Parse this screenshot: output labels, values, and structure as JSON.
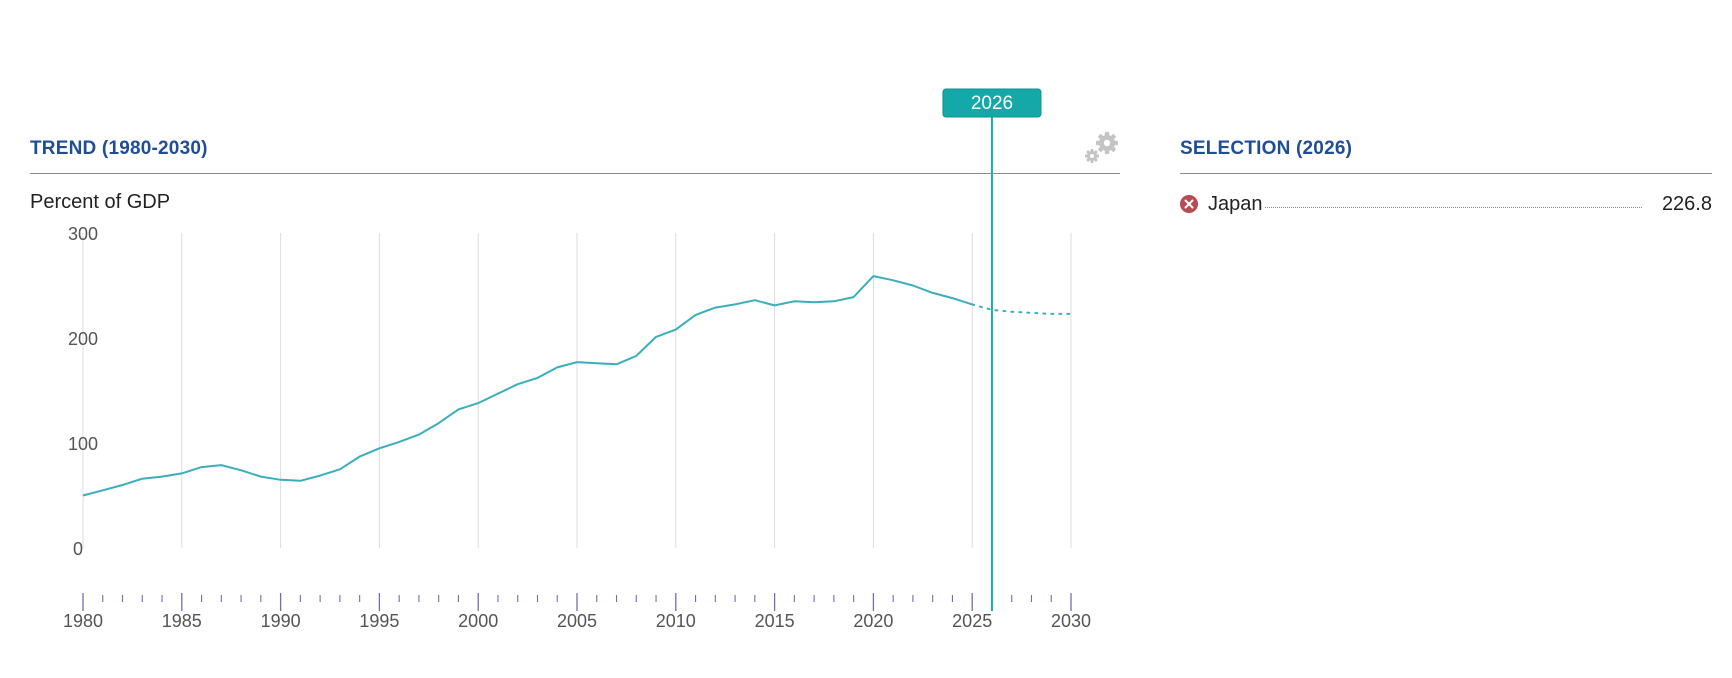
{
  "trend_panel": {
    "title": "TREND (1980-2030)",
    "unit_label": "Percent of GDP"
  },
  "selection_panel": {
    "title": "SELECTION (2026)",
    "items": [
      {
        "country": "Japan",
        "value": "226.8",
        "remove_icon": "close-circle-icon"
      }
    ]
  },
  "settings_icon": "gears-icon",
  "colors": {
    "line": "#3aaebd",
    "marker": "#1aaeb0",
    "title": "#1f4e96",
    "remove": "#b94a55"
  },
  "chart_data": {
    "type": "line",
    "title": "TREND (1980-2030)",
    "ylabel": "Percent of GDP",
    "xlabel": "",
    "xlim": [
      1980,
      2030
    ],
    "ylim": [
      0,
      300
    ],
    "y_ticks": [
      0,
      100,
      200,
      300
    ],
    "x_ticks": [
      1980,
      1985,
      1990,
      1995,
      2000,
      2005,
      2010,
      2015,
      2020,
      2025,
      2030
    ],
    "grid": true,
    "selected_year": 2026,
    "selected_label": "2026",
    "series": [
      {
        "name": "Japan",
        "actual_through": 2025,
        "points": [
          [
            1980,
            50
          ],
          [
            1981,
            55
          ],
          [
            1982,
            60
          ],
          [
            1983,
            66
          ],
          [
            1984,
            68
          ],
          [
            1985,
            71
          ],
          [
            1986,
            77
          ],
          [
            1987,
            79
          ],
          [
            1988,
            74
          ],
          [
            1989,
            68
          ],
          [
            1990,
            65
          ],
          [
            1991,
            64
          ],
          [
            1992,
            69
          ],
          [
            1993,
            75
          ],
          [
            1994,
            87
          ],
          [
            1995,
            95
          ],
          [
            1996,
            101
          ],
          [
            1997,
            108
          ],
          [
            1998,
            119
          ],
          [
            1999,
            132
          ],
          [
            2000,
            138
          ],
          [
            2001,
            147
          ],
          [
            2002,
            156
          ],
          [
            2003,
            162
          ],
          [
            2004,
            172
          ],
          [
            2005,
            177
          ],
          [
            2006,
            176
          ],
          [
            2007,
            175
          ],
          [
            2008,
            183
          ],
          [
            2009,
            201
          ],
          [
            2010,
            208
          ],
          [
            2011,
            222
          ],
          [
            2012,
            229
          ],
          [
            2013,
            232
          ],
          [
            2014,
            236
          ],
          [
            2015,
            231
          ],
          [
            2016,
            235
          ],
          [
            2017,
            234
          ],
          [
            2018,
            235
          ],
          [
            2019,
            239
          ],
          [
            2020,
            259
          ],
          [
            2021,
            255
          ],
          [
            2022,
            250
          ],
          [
            2023,
            243
          ],
          [
            2024,
            238
          ],
          [
            2025,
            232
          ],
          [
            2026,
            226.8
          ],
          [
            2027,
            225
          ],
          [
            2028,
            224
          ],
          [
            2029,
            223
          ],
          [
            2030,
            223
          ]
        ]
      }
    ]
  }
}
